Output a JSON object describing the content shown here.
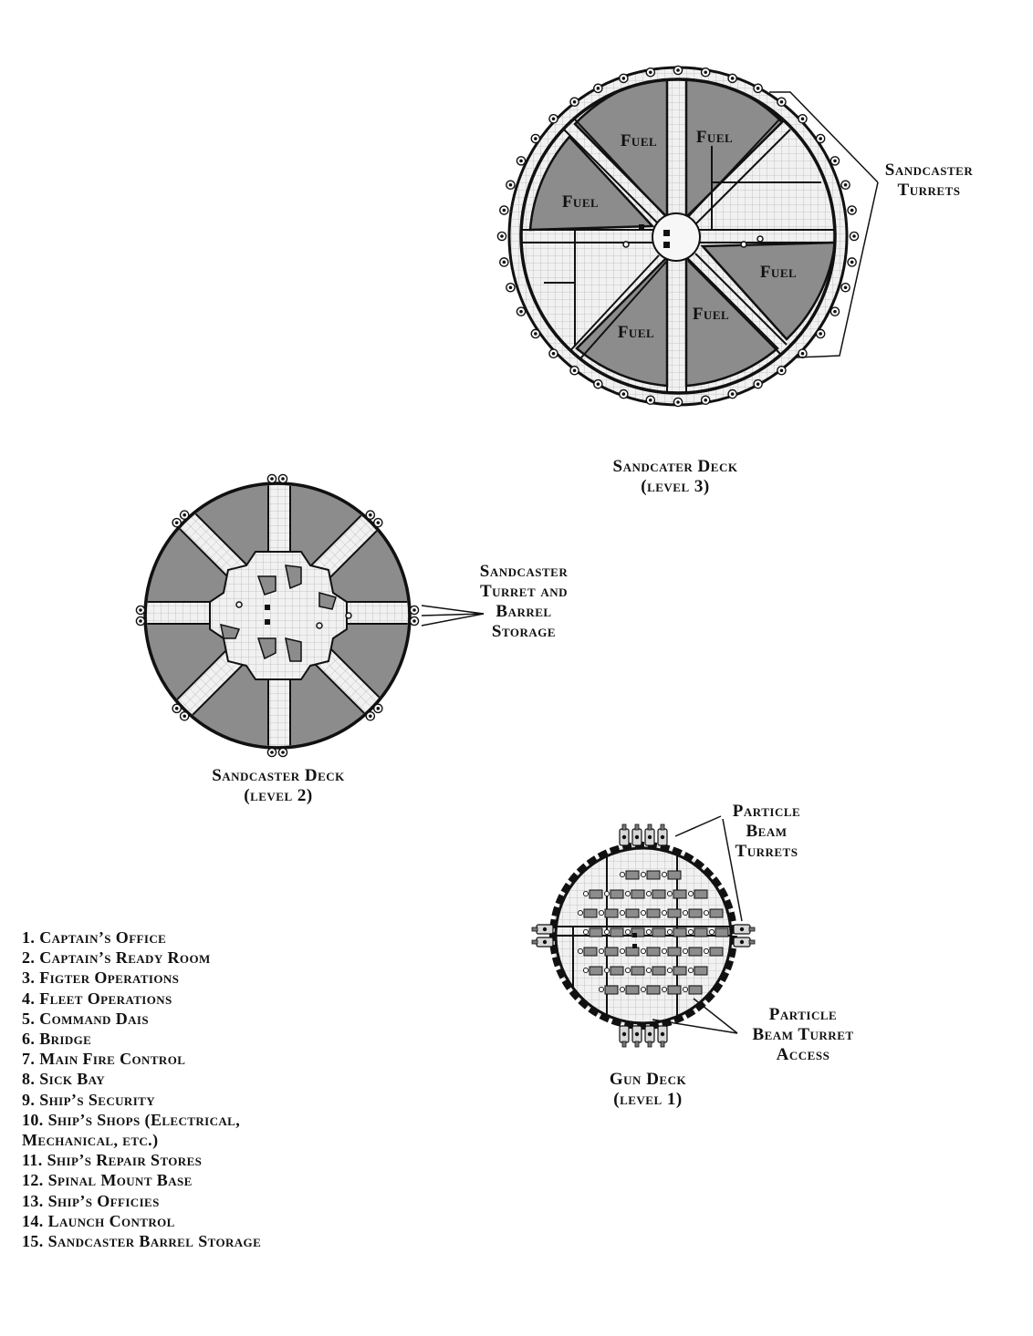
{
  "deck3": {
    "title": "Sandcater Deck",
    "subtitle": "(level 3)",
    "fuel_label": "Fuel",
    "callout": [
      "Sandcaster",
      "Turrets"
    ]
  },
  "deck2": {
    "title": "Sandcaster Deck",
    "subtitle": "(level 2)",
    "callout": [
      "Sandcaster",
      "Turret and",
      "Barrel",
      "Storage"
    ]
  },
  "deck1": {
    "title": "Gun Deck",
    "subtitle": "(level 1)",
    "callout_top": [
      "Particle",
      "Beam",
      "Turrets"
    ],
    "callout_bottom": [
      "Particle",
      "Beam Turret",
      "Access"
    ]
  },
  "legend": [
    "1.  Captain’s Office",
    "2.  Captain’s Ready Room",
    "3.  Figter Operations",
    "4.  Fleet Operations",
    "5.  Command Dais",
    "6.  Bridge",
    "7.  Main Fire Control",
    "8.  Sick Bay",
    "9.  Ship’s Security",
    "10.  Ship’s Shops (Electrical,",
    "Mechanical, etc.)",
    "11.  Ship’s Repair Stores",
    "12.  Spinal Mount Base",
    "13.  Ship’s Officies",
    "14.  Launch Control",
    "15.  Sandcaster Barrel Storage"
  ],
  "colors": {
    "hull": "#111111",
    "fill_dark": "#8c8c8c",
    "floor": "#eeeeee",
    "grid": "#b9b9b9",
    "ink": "#111111"
  }
}
